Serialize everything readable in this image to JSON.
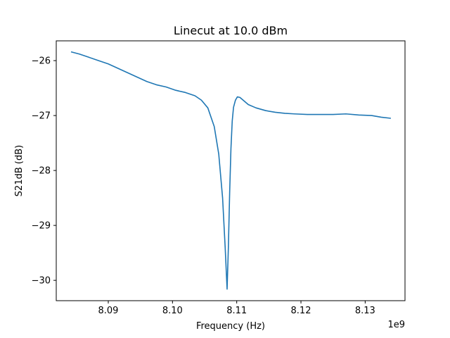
{
  "chart_data": {
    "type": "line",
    "title": "Linecut at 10.0 dBm",
    "xlabel": "Frequency (Hz)",
    "ylabel": "S21dB (dB)",
    "x_offset_label": "1e9",
    "xlim": [
      8.0819,
      8.1362
    ],
    "ylim": [
      -30.37,
      -25.64
    ],
    "x_ticks": [
      8.09,
      8.1,
      8.11,
      8.12,
      8.13
    ],
    "x_tick_labels": [
      "8.09",
      "8.10",
      "8.11",
      "8.12",
      "8.13"
    ],
    "y_ticks": [
      -26,
      -27,
      -28,
      -29,
      -30
    ],
    "y_tick_labels": [
      "−26",
      "−27",
      "−28",
      "−29",
      "−30"
    ],
    "grid": false,
    "series": [
      {
        "color": "#1f77b4",
        "x": [
          8.0842,
          8.0855,
          8.087,
          8.0885,
          8.09,
          8.0915,
          8.093,
          8.0945,
          8.096,
          8.0975,
          8.099,
          8.1005,
          8.102,
          8.1035,
          8.1045,
          8.1055,
          8.1065,
          8.1072,
          8.1078,
          8.1082,
          8.1085,
          8.1087,
          8.1089,
          8.1091,
          8.1093,
          8.1095,
          8.1098,
          8.1101,
          8.1105,
          8.111,
          8.1118,
          8.113,
          8.1145,
          8.116,
          8.1175,
          8.119,
          8.121,
          8.123,
          8.125,
          8.127,
          8.129,
          8.131,
          8.1325,
          8.134
        ],
        "y": [
          -25.84,
          -25.88,
          -25.94,
          -26.0,
          -26.06,
          -26.14,
          -26.22,
          -26.3,
          -26.38,
          -26.44,
          -26.48,
          -26.54,
          -26.58,
          -26.64,
          -26.72,
          -26.86,
          -27.2,
          -27.7,
          -28.5,
          -29.4,
          -30.16,
          -29.4,
          -28.4,
          -27.6,
          -27.1,
          -26.85,
          -26.72,
          -26.66,
          -26.67,
          -26.72,
          -26.8,
          -26.86,
          -26.91,
          -26.94,
          -26.96,
          -26.97,
          -26.98,
          -26.98,
          -26.98,
          -26.97,
          -26.99,
          -27.0,
          -27.03,
          -27.05
        ]
      }
    ]
  }
}
